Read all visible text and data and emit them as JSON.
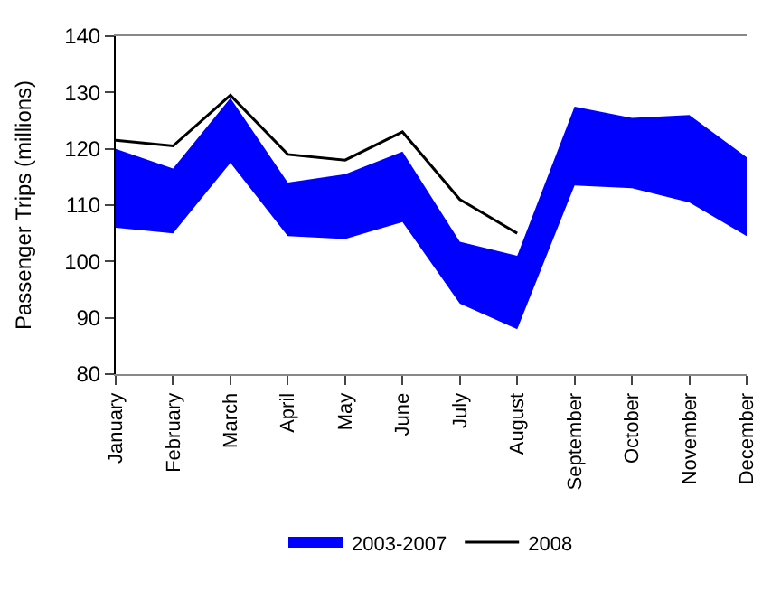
{
  "chart_data": {
    "type": "line",
    "ylabel": "Passenger Trips (millions)",
    "categories": [
      "January",
      "February",
      "March",
      "April",
      "May",
      "June",
      "July",
      "August",
      "September",
      "October",
      "November",
      "December"
    ],
    "series": [
      {
        "name": "2003-2007",
        "color": "#0000ff",
        "values": [
          null,
          null,
          null,
          null,
          null,
          null,
          null,
          null,
          null,
          null,
          null,
          null
        ],
        "lower": [
          106,
          105,
          117.5,
          104.5,
          104,
          107,
          92.5,
          88,
          113.5,
          113,
          110.5,
          104.5
        ],
        "upper": [
          120,
          116.5,
          129,
          114,
          115.5,
          119.5,
          103.5,
          101,
          127.5,
          125.5,
          126,
          118.5
        ]
      },
      {
        "name": "2008",
        "color": "#000000",
        "values": [
          121.5,
          120.5,
          129.5,
          119,
          118,
          123,
          111,
          105,
          null,
          null,
          null,
          null
        ]
      }
    ],
    "ylim": [
      80,
      140
    ],
    "yticks": [
      80,
      90,
      100,
      110,
      120,
      130,
      140
    ],
    "legend": "bottom",
    "marker": "none",
    "line_style": "solid"
  }
}
